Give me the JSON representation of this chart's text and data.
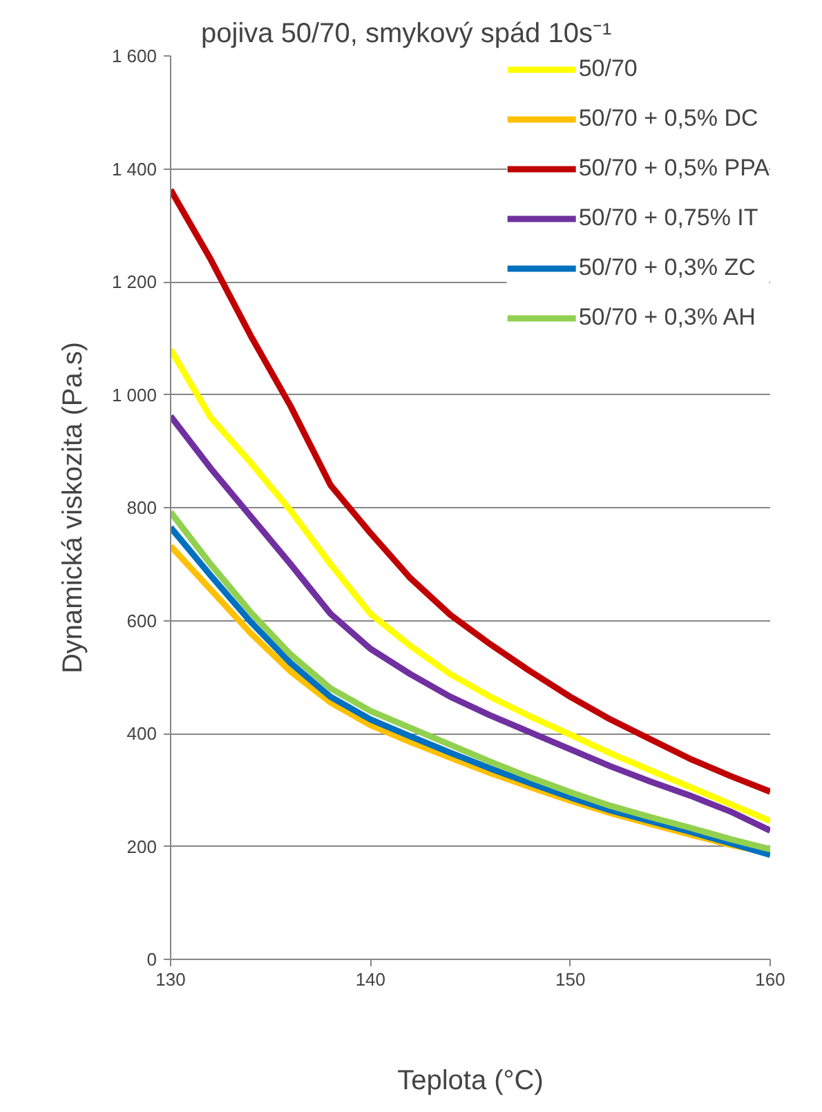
{
  "chart_data": {
    "type": "line",
    "title": "pojiva 50/70, smykový spád 10s⁻¹",
    "xlabel": "Teplota (°C)",
    "ylabel": "Dynamická viskozita (Pa.s)",
    "x": [
      130,
      132,
      134,
      136,
      138,
      140,
      142,
      144,
      146,
      148,
      150,
      152,
      154,
      156,
      158,
      160
    ],
    "series": [
      {
        "name": "50/70",
        "color": "#ffff00",
        "values": [
          1080,
          960,
          880,
          795,
          700,
          612,
          555,
          505,
          465,
          430,
          398,
          365,
          335,
          305,
          275,
          245
        ]
      },
      {
        "name": "50/70 + 0,5% DC",
        "color": "#ffc000",
        "values": [
          732,
          655,
          578,
          510,
          455,
          415,
          385,
          357,
          330,
          305,
          281,
          259,
          240,
          221,
          203,
          188
        ]
      },
      {
        "name": "50/70 + 0,5% PPA",
        "color": "#c00000",
        "values": [
          1363,
          1240,
          1105,
          980,
          840,
          755,
          675,
          610,
          558,
          510,
          465,
          425,
          390,
          355,
          325,
          297
        ]
      },
      {
        "name": "50/70 + 0,75% IT",
        "color": "#7030a0",
        "values": [
          962,
          870,
          785,
          700,
          612,
          550,
          505,
          465,
          432,
          402,
          372,
          342,
          315,
          290,
          262,
          228
        ]
      },
      {
        "name": "50/70 + 0,3% ZC",
        "color": "#0070c0",
        "values": [
          765,
          680,
          598,
          525,
          465,
          425,
          395,
          366,
          338,
          312,
          287,
          264,
          245,
          226,
          206,
          185
        ]
      },
      {
        "name": "50/70 + 0,3% AH",
        "color": "#92d050",
        "values": [
          792,
          700,
          615,
          540,
          480,
          440,
          410,
          380,
          350,
          322,
          296,
          272,
          252,
          233,
          213,
          195
        ]
      }
    ],
    "xlim": [
      130,
      160
    ],
    "xticks": [
      130,
      140,
      150,
      160
    ],
    "ylim": [
      0,
      1600
    ],
    "yticks": [
      0,
      {
        "value": 200,
        "label": "200"
      },
      {
        "value": 400,
        "label": "400"
      },
      {
        "value": 600,
        "label": "600"
      },
      {
        "value": 800,
        "label": "800"
      },
      {
        "value": 1000,
        "label": "1 000"
      },
      {
        "value": 1200,
        "label": "1 200"
      },
      {
        "value": 1400,
        "label": "1 400"
      },
      {
        "value": 1600,
        "label": "1 600"
      }
    ],
    "grid": "y",
    "legend": "top right",
    "marker": "none",
    "line_style": "solid"
  }
}
